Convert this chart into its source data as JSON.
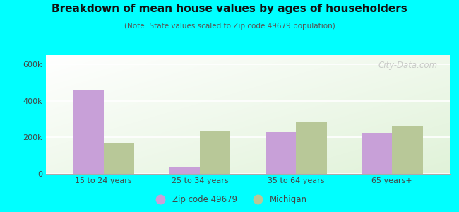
{
  "title": "Breakdown of mean house values by ages of householders",
  "subtitle": "(Note: State values scaled to Zip code 49679 population)",
  "categories": [
    "15 to 24 years",
    "25 to 34 years",
    "35 to 64 years",
    "65 years+"
  ],
  "zip_values": [
    460000,
    35000,
    230000,
    225000
  ],
  "michigan_values": [
    165000,
    235000,
    285000,
    260000
  ],
  "zip_color": "#c8a0d8",
  "michigan_color": "#b8c898",
  "ylim": [
    0,
    650000
  ],
  "yticks": [
    0,
    200000,
    400000,
    600000
  ],
  "ytick_labels": [
    "0",
    "200k",
    "400k",
    "600k"
  ],
  "background_outer": "#00ffff",
  "legend_zip_label": "Zip code 49679",
  "legend_michigan_label": "Michigan",
  "bar_width": 0.32,
  "watermark": "City-Data.com"
}
